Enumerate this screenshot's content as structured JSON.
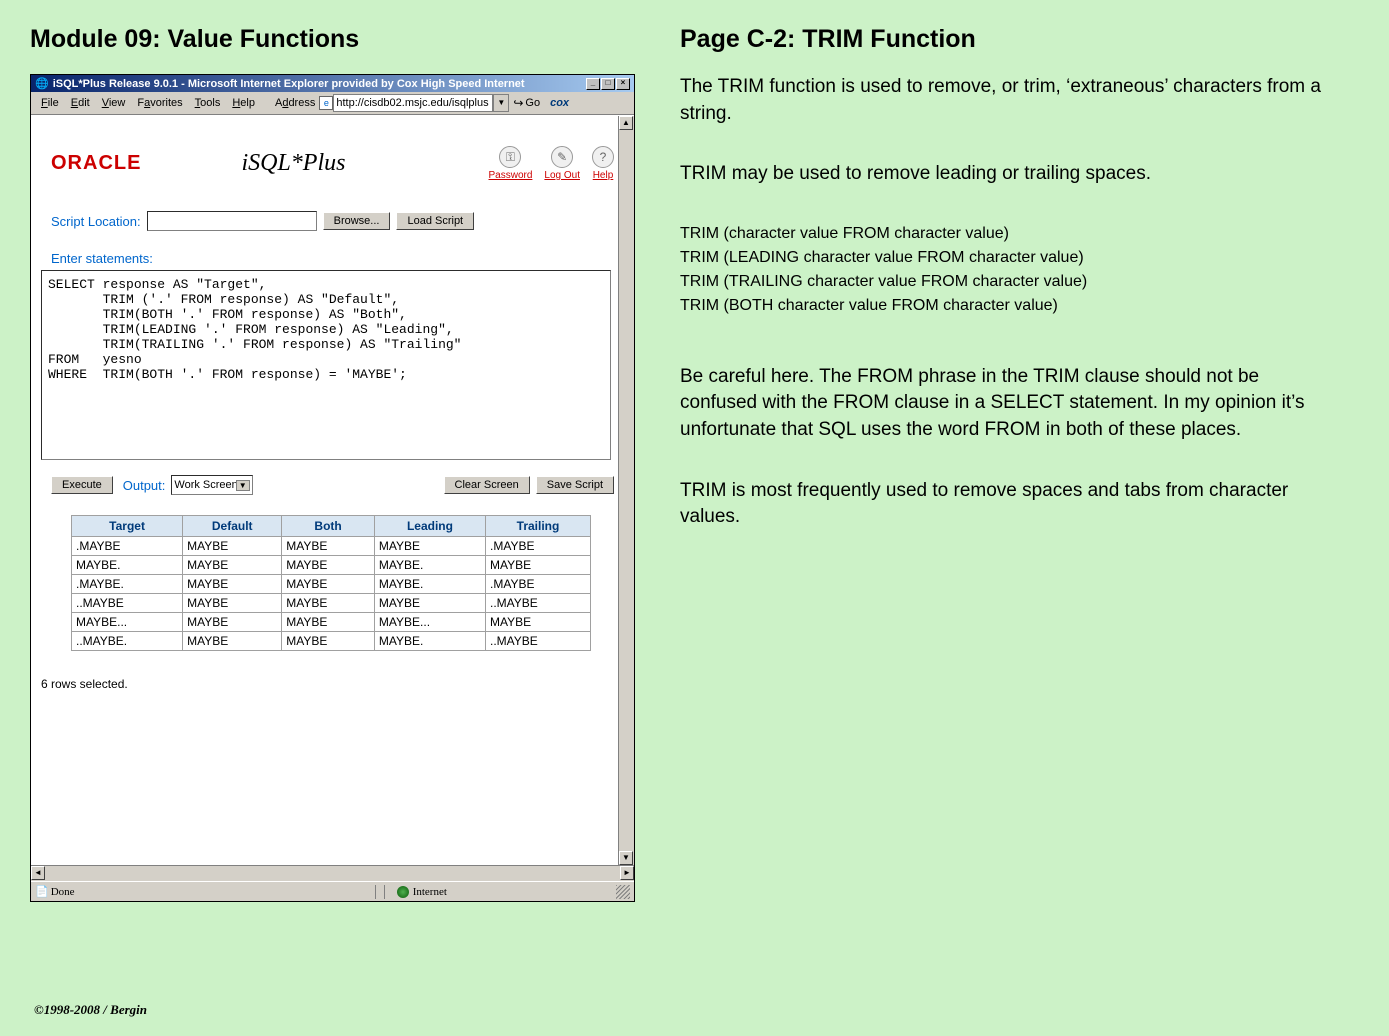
{
  "left_heading": "Module 09: Value Functions",
  "right_heading": "Page C-2:  TRIM Function",
  "colors": {
    "page_bg": "#ccf2c7",
    "titlebar_start": "#08246b",
    "titlebar_end": "#a6caf0",
    "win_gray": "#d4d0c8",
    "oracle_red": "#cc0000",
    "link_blue": "#0066cc",
    "table_header_bg": "#d9e6f2",
    "table_header_fg": "#003a7a",
    "border_gray": "#a0a0a0"
  },
  "browser": {
    "title": "iSQL*Plus Release 9.0.1 - Microsoft Internet Explorer provided by Cox High Speed Internet",
    "menu": [
      "File",
      "Edit",
      "View",
      "Favorites",
      "Tools",
      "Help"
    ],
    "address_label": "Address",
    "address_value": "http://cisdb02.msjc.edu/isqlplus",
    "go_label": "Go",
    "brand": "cox",
    "status_text": "Done",
    "status_zone": "Internet"
  },
  "isqlplus": {
    "oracle_logo": "ORACLE",
    "product_title": "iSQL*Plus",
    "header_icons": [
      {
        "name": "password-icon",
        "glyph": "⚿",
        "label": "Password"
      },
      {
        "name": "logout-icon",
        "glyph": "✎",
        "label": "Log Out"
      },
      {
        "name": "help-icon",
        "glyph": "?",
        "label": "Help"
      }
    ],
    "script_location_label": "Script Location:",
    "browse_btn": "Browse...",
    "load_script_btn": "Load Script",
    "enter_statements_label": "Enter statements:",
    "sql_text": "SELECT response AS \"Target\",\n       TRIM ('.' FROM response) AS \"Default\",\n       TRIM(BOTH '.' FROM response) AS \"Both\",\n       TRIM(LEADING '.' FROM response) AS \"Leading\",\n       TRIM(TRAILING '.' FROM response) AS \"Trailing\"\nFROM   yesno\nWHERE  TRIM(BOTH '.' FROM response) = 'MAYBE';",
    "execute_btn": "Execute",
    "output_label": "Output:",
    "output_value": "Work Screen",
    "clear_btn": "Clear Screen",
    "save_btn": "Save Script",
    "table": {
      "columns": [
        "Target",
        "Default",
        "Both",
        "Leading",
        "Trailing"
      ],
      "rows": [
        [
          ".MAYBE",
          "MAYBE",
          "MAYBE",
          "MAYBE",
          ".MAYBE"
        ],
        [
          "MAYBE.",
          "MAYBE",
          "MAYBE",
          "MAYBE.",
          "MAYBE"
        ],
        [
          ".MAYBE.",
          "MAYBE",
          "MAYBE",
          "MAYBE.",
          ".MAYBE"
        ],
        [
          "..MAYBE",
          "MAYBE",
          "MAYBE",
          "MAYBE",
          "..MAYBE"
        ],
        [
          "MAYBE...",
          "MAYBE",
          "MAYBE",
          "MAYBE...",
          "MAYBE"
        ],
        [
          "..MAYBE.",
          "MAYBE",
          "MAYBE",
          "MAYBE.",
          "..MAYBE"
        ]
      ]
    },
    "rows_selected": "6 rows selected."
  },
  "paragraphs": {
    "p1": "The TRIM function is used to remove, or trim, ‘extraneous’ characters from a string.",
    "p2": "TRIM may be used to remove leading or trailing spaces.",
    "syntax": "TRIM (character value  FROM  character value)\nTRIM (LEADING character value  FROM  character value)\nTRIM (TRAILING character value  FROM  character value)\nTRIM (BOTH character value  FROM  character value)",
    "p3": "Be careful here.  The FROM phrase in the TRIM clause should not be confused with the FROM clause in a SELECT statement.  In my opinion it’s unfortunate that SQL uses the word FROM in both of these places.",
    "p4": "TRIM is most frequently used to remove spaces and tabs from character values."
  },
  "footer": "©1998-2008 / Bergin"
}
